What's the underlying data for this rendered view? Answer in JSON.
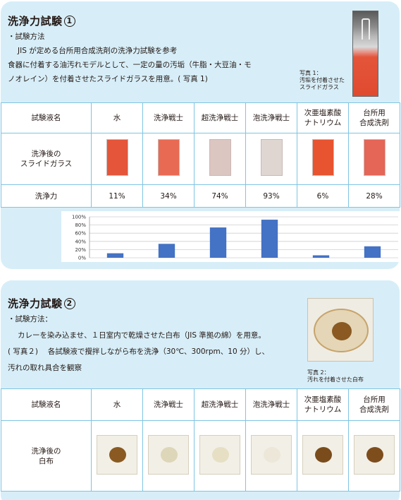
{
  "section1": {
    "title": "洗浄力試験",
    "title_num": "1",
    "method_label": "・試験方法",
    "method_lines": [
      "JIS が定める台所用合成洗剤の洗浄力試験を参考",
      "食器に付着する油汚れモデルとして、一定の量の汚垢（牛脂・大豆油・モ",
      "ノオレイン）を付着させたスライドガラスを用意。( 写真 1)"
    ],
    "photo_caption": [
      "写真 1：",
      "汚垢を付着させた",
      "スライドガラス"
    ],
    "table": {
      "row_header_name": "試験液名",
      "row_header_image": [
        "洗浄後の",
        "スライドガラス"
      ],
      "row_header_power": "洗浄力",
      "columns": [
        {
          "name": [
            "水"
          ],
          "power": "11%",
          "color": "#e4553a"
        },
        {
          "name": [
            "洗浄戦士"
          ],
          "power": "34%",
          "color": "#e96a52"
        },
        {
          "name": [
            "超洗浄戦士"
          ],
          "power": "74%",
          "color": "#dcc6c2"
        },
        {
          "name": [
            "泡洗浄戦士"
          ],
          "power": "93%",
          "color": "#dfd6d2"
        },
        {
          "name": [
            "次亜塩素酸",
            "ナトリウム"
          ],
          "power": "6%",
          "color": "#e7542f"
        },
        {
          "name": [
            "台所用",
            "合成洗剤"
          ],
          "power": "28%",
          "color": "#e56557"
        }
      ]
    }
  },
  "chart_data": {
    "type": "bar",
    "categories": [
      "水",
      "洗浄戦士",
      "超洗浄戦士",
      "泡洗浄戦士",
      "次亜塩素酸ナトリウム",
      "台所用合成洗剤"
    ],
    "values": [
      11,
      34,
      74,
      93,
      6,
      28
    ],
    "yticks": [
      "100%",
      "80%",
      "60%",
      "40%",
      "20%",
      "0%"
    ],
    "ylim": [
      0,
      100
    ],
    "bar_color": "#4472c4",
    "grid": true
  },
  "section2": {
    "title": "洗浄力試験",
    "title_num": "2",
    "method_label": "・試験方法：",
    "method_lines": [
      "カレーを染み込ませ、１日室内で乾燥させた白布（JIS 準拠の綿）を用意。",
      "( 写真２)　 各試験液で攪拌しながら布を洗浄（30℃、300rpm、10 分）し、",
      "汚れの取れ具合を観察"
    ],
    "photo_caption": [
      "写真 2：",
      "汚れを付着させた白布"
    ],
    "table": {
      "row_header_name": "試験液名",
      "row_header_image": [
        "洗浄後の",
        "白布"
      ],
      "columns": [
        {
          "name": [
            "水"
          ],
          "stain": "#8a5a22"
        },
        {
          "name": [
            "洗浄戦士"
          ],
          "stain": "#ddd6b8"
        },
        {
          "name": [
            "超洗浄戦士"
          ],
          "stain": "#e6dfc4"
        },
        {
          "name": [
            "泡洗浄戦士"
          ],
          "stain": "#ece7d8"
        },
        {
          "name": [
            "次亜塩素酸",
            "ナトリウム"
          ],
          "stain": "#7a4c1c"
        },
        {
          "name": [
            "台所用",
            "合成洗剤"
          ],
          "stain": "#7e4d1c"
        }
      ]
    }
  }
}
